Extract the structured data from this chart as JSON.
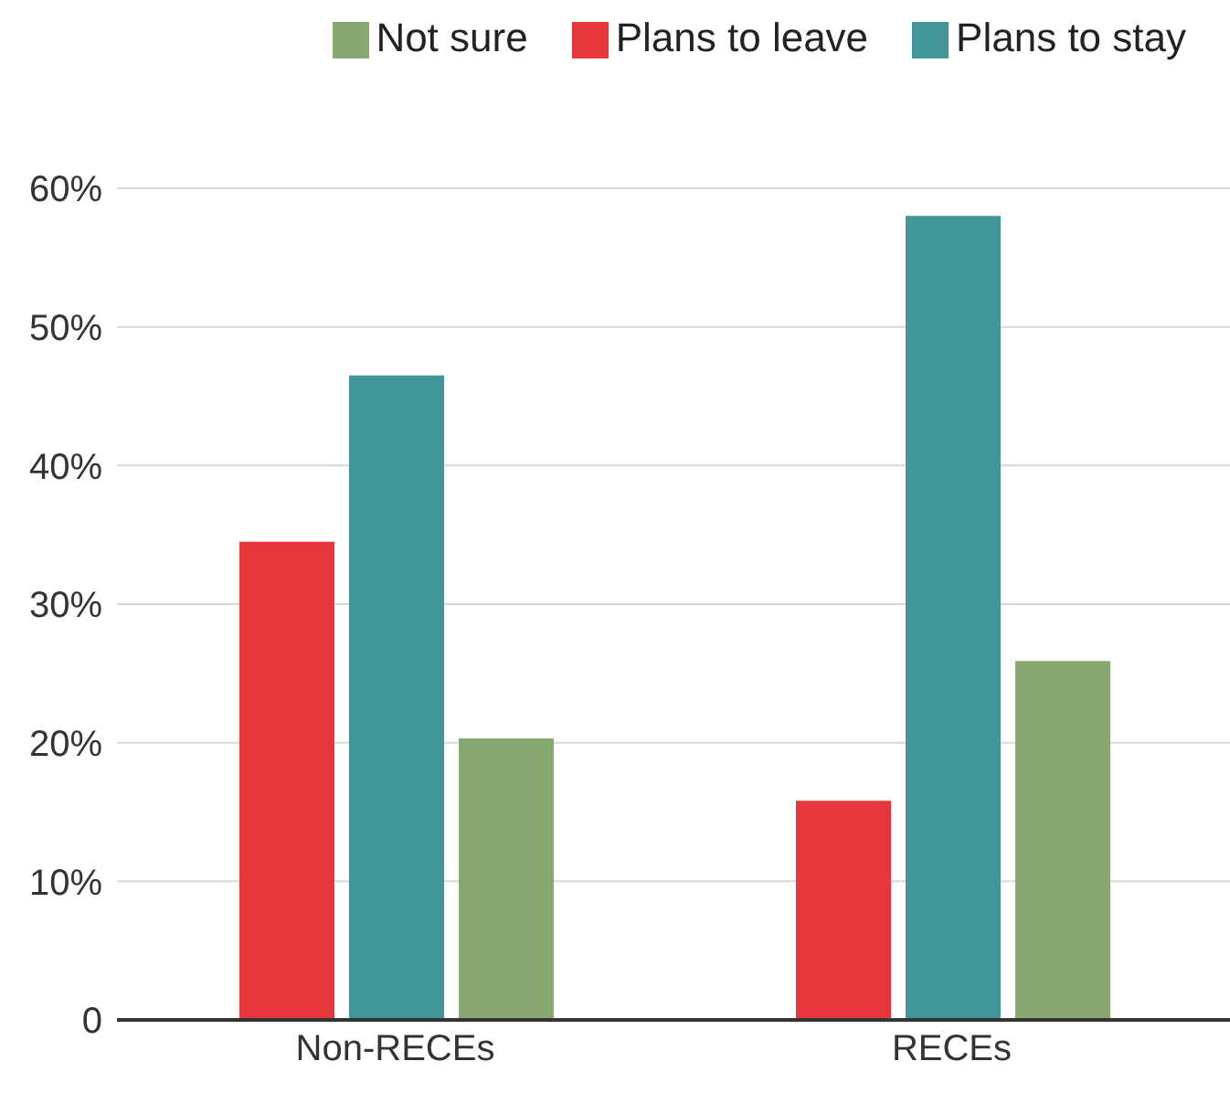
{
  "chart_data": {
    "type": "bar",
    "categories": [
      "Non-RECEs",
      "RECEs"
    ],
    "series": [
      {
        "name": "Plans to leave",
        "color": "#e8373a",
        "values": [
          34.5,
          15.8
        ]
      },
      {
        "name": "Plans to stay",
        "color": "#42969a",
        "values": [
          46.5,
          58.0
        ]
      },
      {
        "name": "Not sure",
        "color": "#87a96f",
        "values": [
          20.3,
          25.9
        ]
      }
    ],
    "ylim": [
      0,
      60
    ],
    "yticks": [
      0,
      {
        "value": 10,
        "label": "10%"
      },
      {
        "value": 20,
        "label": "20%"
      },
      {
        "value": 30,
        "label": "30%"
      },
      {
        "value": 40,
        "label": "40%"
      },
      {
        "value": 50,
        "label": "50%"
      },
      {
        "value": 60,
        "label": "60%"
      }
    ],
    "grid": "y",
    "legend": "top right"
  }
}
